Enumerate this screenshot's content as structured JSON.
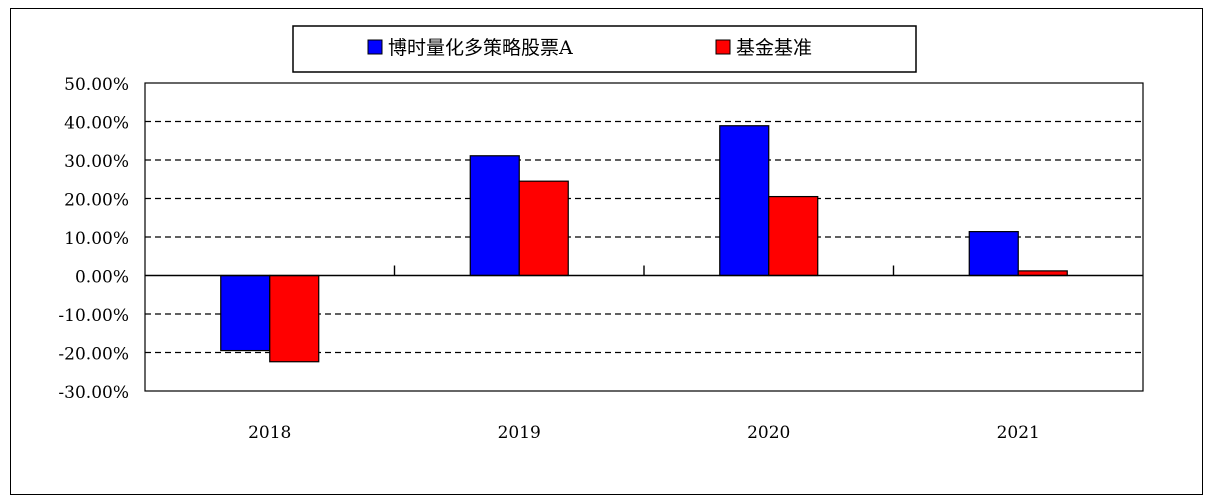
{
  "chart_data": {
    "type": "bar",
    "categories": [
      "2018",
      "2019",
      "2020",
      "2021"
    ],
    "series": [
      {
        "name": "博时量化多策略股票A",
        "color": "#0000FF",
        "values": [
          -19.5,
          31.1,
          38.9,
          11.4
        ]
      },
      {
        "name": "基金基准",
        "color": "#FF0000",
        "values": [
          -22.4,
          24.5,
          20.5,
          1.2
        ]
      }
    ],
    "ylim": [
      -30,
      50
    ],
    "yticks": [
      "50.00%",
      "40.00%",
      "30.00%",
      "20.00%",
      "10.00%",
      "0.00%",
      "-10.00%",
      "-20.00%",
      "-30.00%"
    ],
    "ytick_values": [
      50,
      40,
      30,
      20,
      10,
      0,
      -10,
      -20,
      -30
    ],
    "grid": "dashed horizontal",
    "legend_position": "top-center"
  }
}
